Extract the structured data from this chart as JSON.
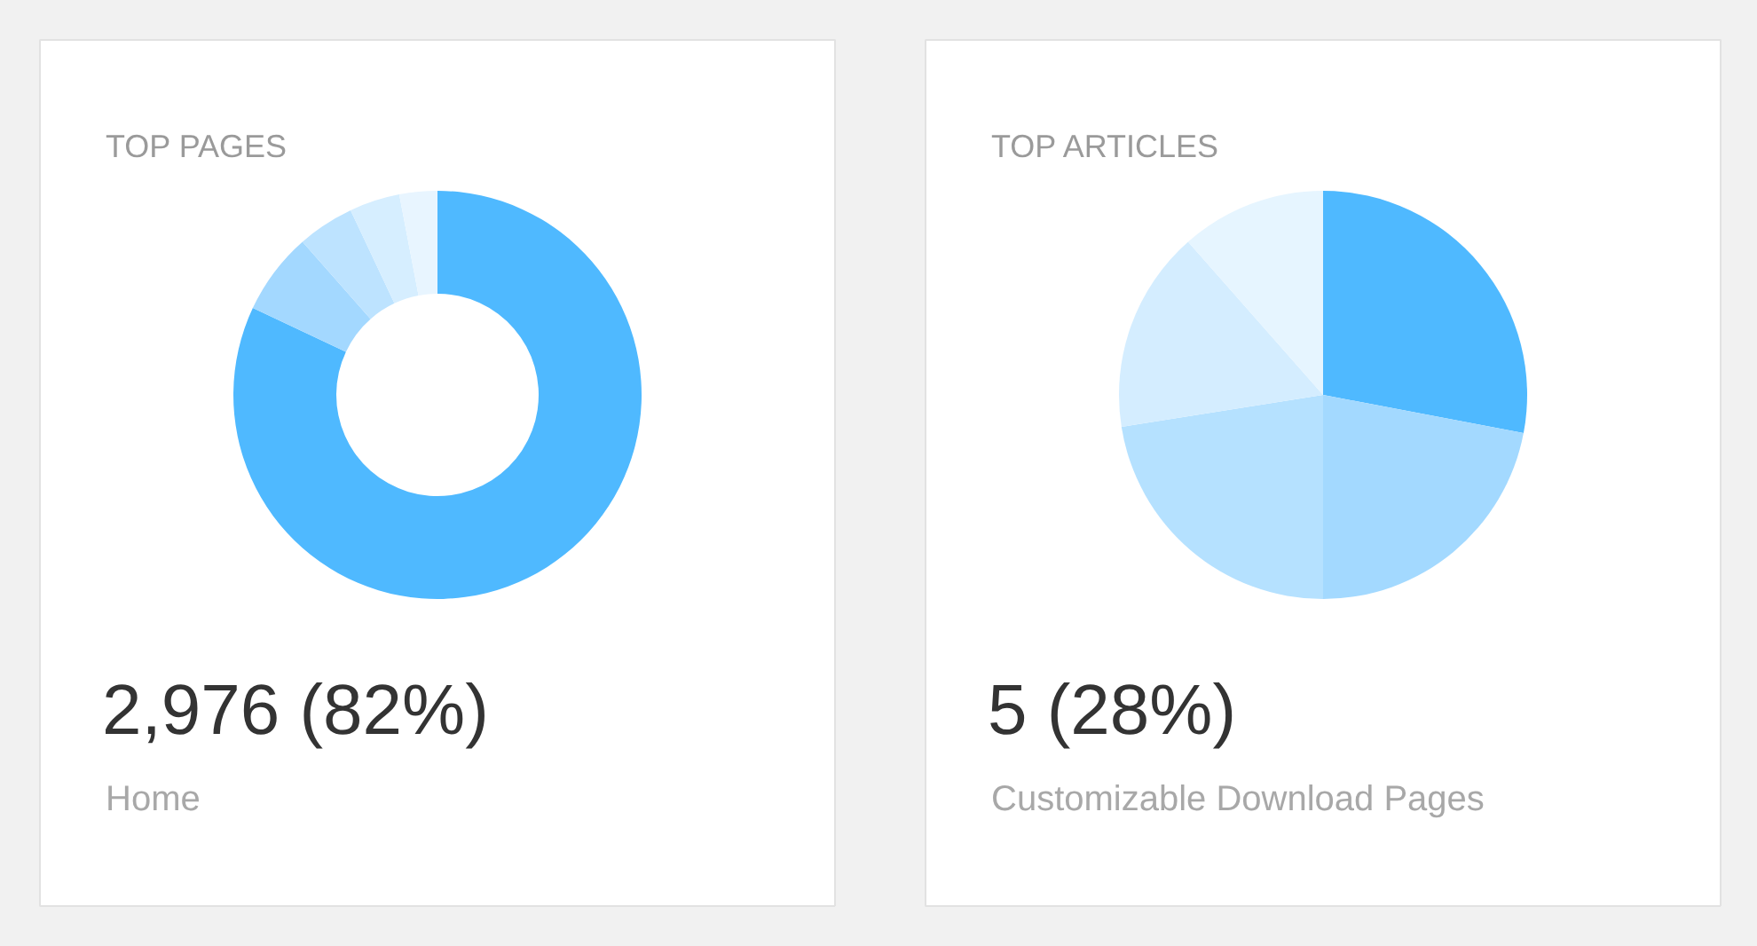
{
  "chart_data": [
    {
      "type": "donut",
      "title": "TOP PAGES",
      "categories": [
        null,
        null,
        null,
        null,
        null
      ],
      "values": [
        82,
        6.5,
        4.5,
        4,
        3
      ],
      "colors": [
        "#4fb9ff",
        "#a3d8ff",
        "#bde3ff",
        "#d6eeff",
        "#e8f5ff"
      ],
      "annotations": [
        "2,976 (82%)",
        "Home"
      ]
    },
    {
      "type": "pie",
      "title": "TOP ARTICLES",
      "categories": [
        null,
        null,
        null,
        null,
        null
      ],
      "values": [
        28,
        22,
        22.5,
        16,
        11.5
      ],
      "colors": [
        "#4fb9ff",
        "#a3d9ff",
        "#b5e1ff",
        "#d4edff",
        "#e6f5ff"
      ],
      "annotations": [
        "5 (28%)",
        "Customizable Download Pages"
      ]
    }
  ]
}
